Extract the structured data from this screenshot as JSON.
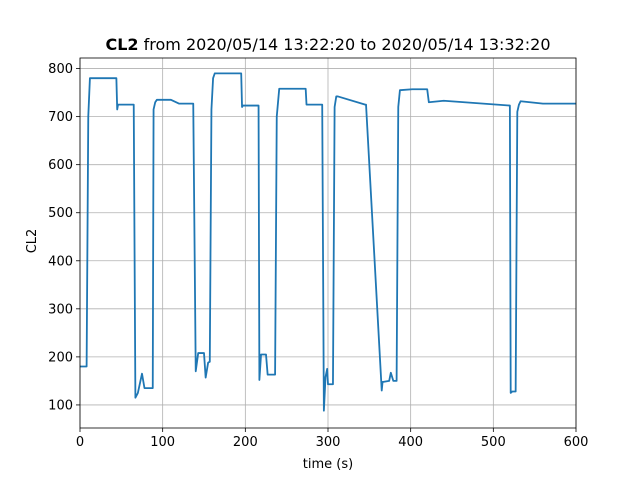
{
  "chart_data": {
    "type": "line",
    "title": {
      "bold": "CL2",
      "rest": " from 2020/05/14 13:22:20 to 2020/05/14 13:32:20"
    },
    "xlabel": "time (s)",
    "ylabel": "CL2",
    "xlim": [
      0,
      600
    ],
    "ylim": [
      52,
      822
    ],
    "x_ticks": [
      0,
      100,
      200,
      300,
      400,
      500,
      600
    ],
    "y_ticks": [
      100,
      200,
      300,
      400,
      500,
      600,
      700,
      800
    ],
    "grid": true,
    "line_color": "#1f77b4",
    "series": [
      {
        "x": [
          0,
          8,
          10,
          12,
          44,
          45,
          46,
          65,
          67,
          70,
          75,
          78,
          88,
          89,
          91,
          93,
          110,
          120,
          137,
          140,
          143,
          150,
          152,
          155,
          157,
          159,
          161,
          163,
          195,
          196,
          197,
          216,
          217,
          219,
          225,
          227,
          236,
          238,
          241,
          273,
          274,
          293,
          295,
          297,
          299,
          300,
          306,
          308,
          310,
          312,
          345,
          346,
          365,
          366,
          367,
          374,
          376,
          379,
          383,
          385,
          387,
          402,
          420,
          422,
          440,
          520,
          521,
          523,
          527,
          529,
          531,
          533,
          560,
          600
        ],
        "y": [
          180,
          180,
          700,
          780,
          780,
          715,
          725,
          725,
          115,
          125,
          165,
          135,
          135,
          715,
          730,
          735,
          735,
          727,
          727,
          170,
          208,
          208,
          157,
          188,
          190,
          715,
          780,
          790,
          790,
          720,
          723,
          723,
          152,
          205,
          205,
          163,
          163,
          700,
          758,
          758,
          725,
          725,
          88,
          158,
          175,
          143,
          143,
          720,
          742,
          742,
          725,
          725,
          130,
          148,
          148,
          150,
          167,
          150,
          150,
          720,
          755,
          757,
          757,
          730,
          733,
          723,
          125,
          128,
          128,
          710,
          725,
          732,
          727,
          727
        ]
      }
    ]
  }
}
